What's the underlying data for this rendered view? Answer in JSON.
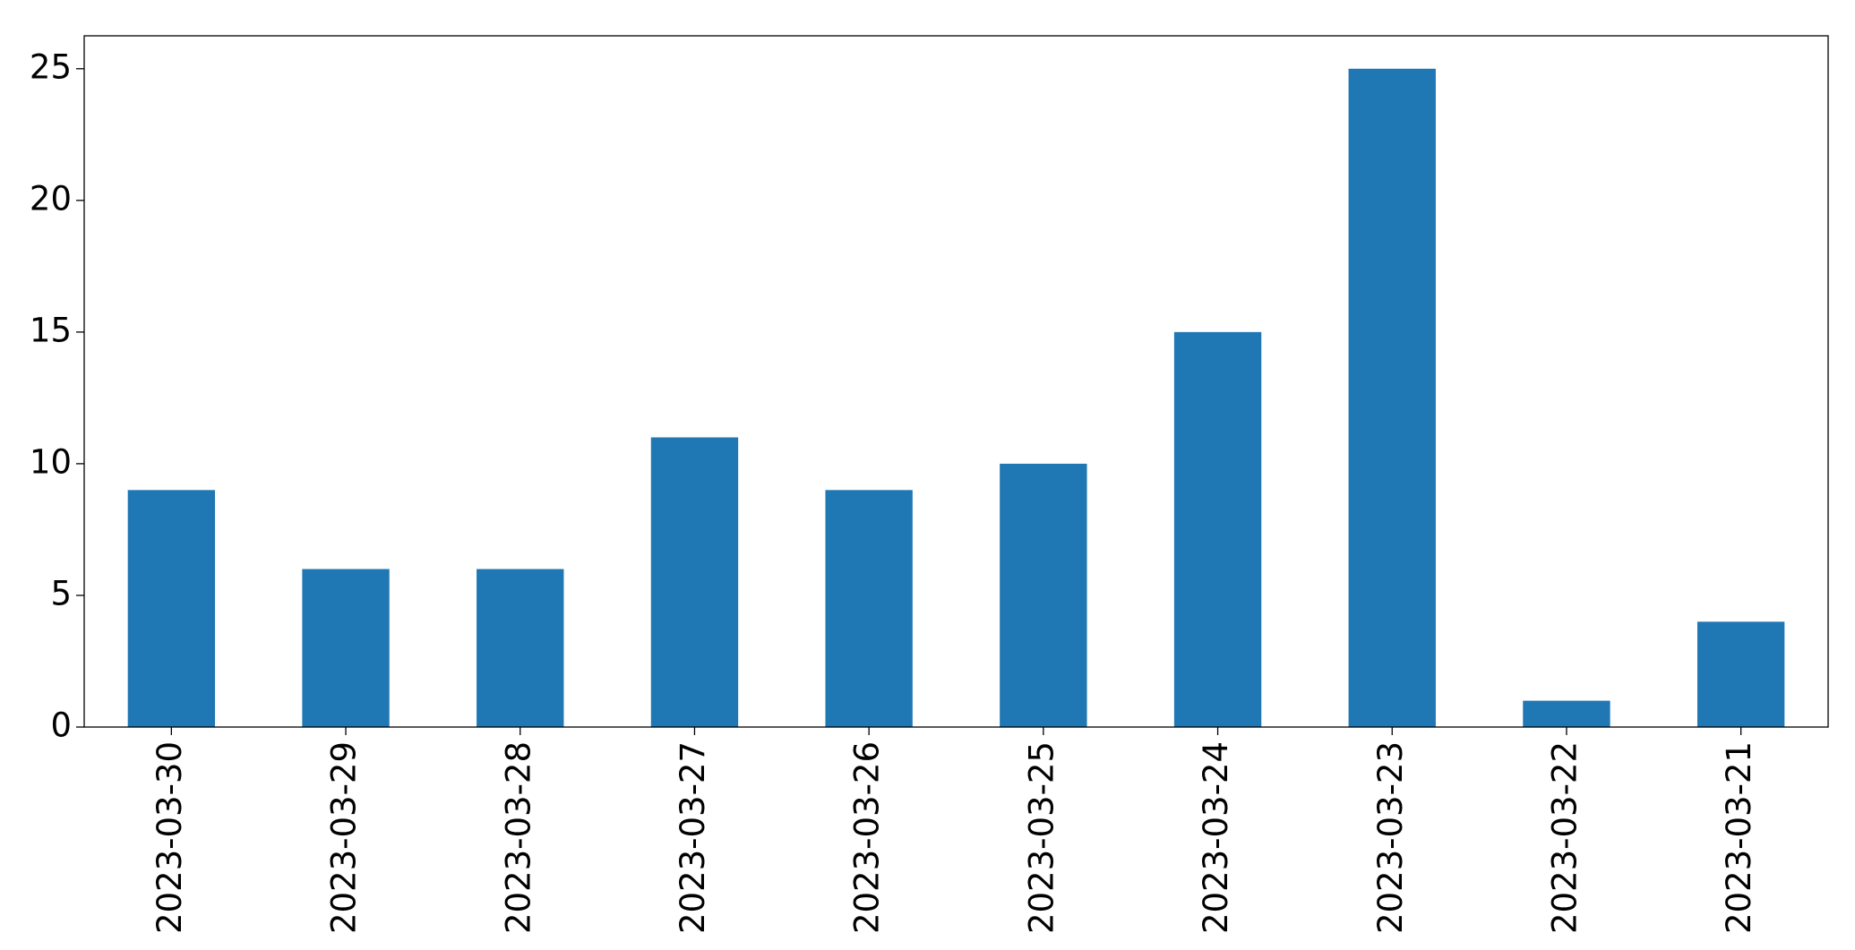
{
  "chart_data": {
    "type": "bar",
    "categories": [
      "2023-03-30",
      "2023-03-29",
      "2023-03-28",
      "2023-03-27",
      "2023-03-26",
      "2023-03-25",
      "2023-03-24",
      "2023-03-23",
      "2023-03-22",
      "2023-03-21"
    ],
    "values": [
      9,
      6,
      6,
      11,
      9,
      10,
      15,
      25,
      1,
      4
    ],
    "color": "#1f77b4",
    "ylim": [
      0,
      26.25
    ],
    "yticks": [
      0,
      5,
      10,
      15,
      20,
      25
    ],
    "grid": false
  }
}
